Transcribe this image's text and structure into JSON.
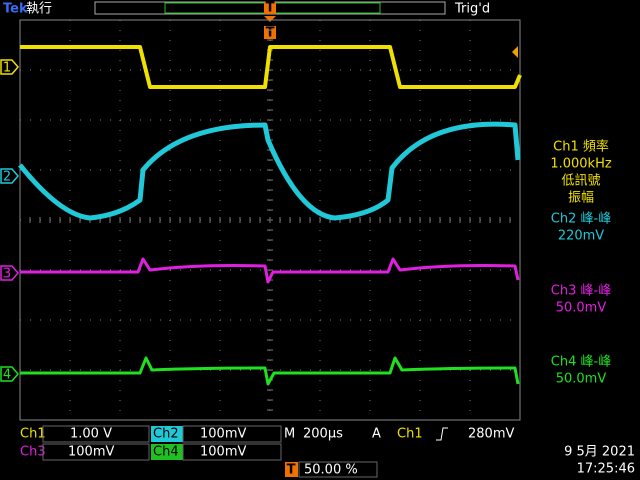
{
  "header": {
    "brand": "Tek",
    "status": "執行",
    "trigger_status": "Trig'd",
    "trigger_marker": "T"
  },
  "channel_markers": [
    "1",
    "2",
    "3",
    "4"
  ],
  "measurements": [
    {
      "lines": [
        "Ch1 頻率",
        "1.000kHz",
        "低訊號",
        "振幅"
      ]
    },
    {
      "lines": [
        "Ch2 峰-峰",
        "220mV"
      ]
    },
    {
      "lines": [
        "Ch3 峰-峰",
        "50.0mV"
      ]
    },
    {
      "lines": [
        "Ch4 峰-峰",
        "50.0mV"
      ]
    }
  ],
  "footer": {
    "channels": [
      {
        "name": "Ch1",
        "scale": "1.00 V"
      },
      {
        "name": "Ch2",
        "scale": "100mV"
      },
      {
        "name": "Ch3",
        "scale": "100mV"
      },
      {
        "name": "Ch4",
        "scale": "100mV"
      }
    ],
    "timebase": {
      "label": "M",
      "value": "200µs"
    },
    "trigger": {
      "mode": "A",
      "source": "Ch1",
      "level": "280mV"
    },
    "trigger_position": "50.00 %",
    "date": "9 5月  2021",
    "time": "17:25:46"
  }
}
